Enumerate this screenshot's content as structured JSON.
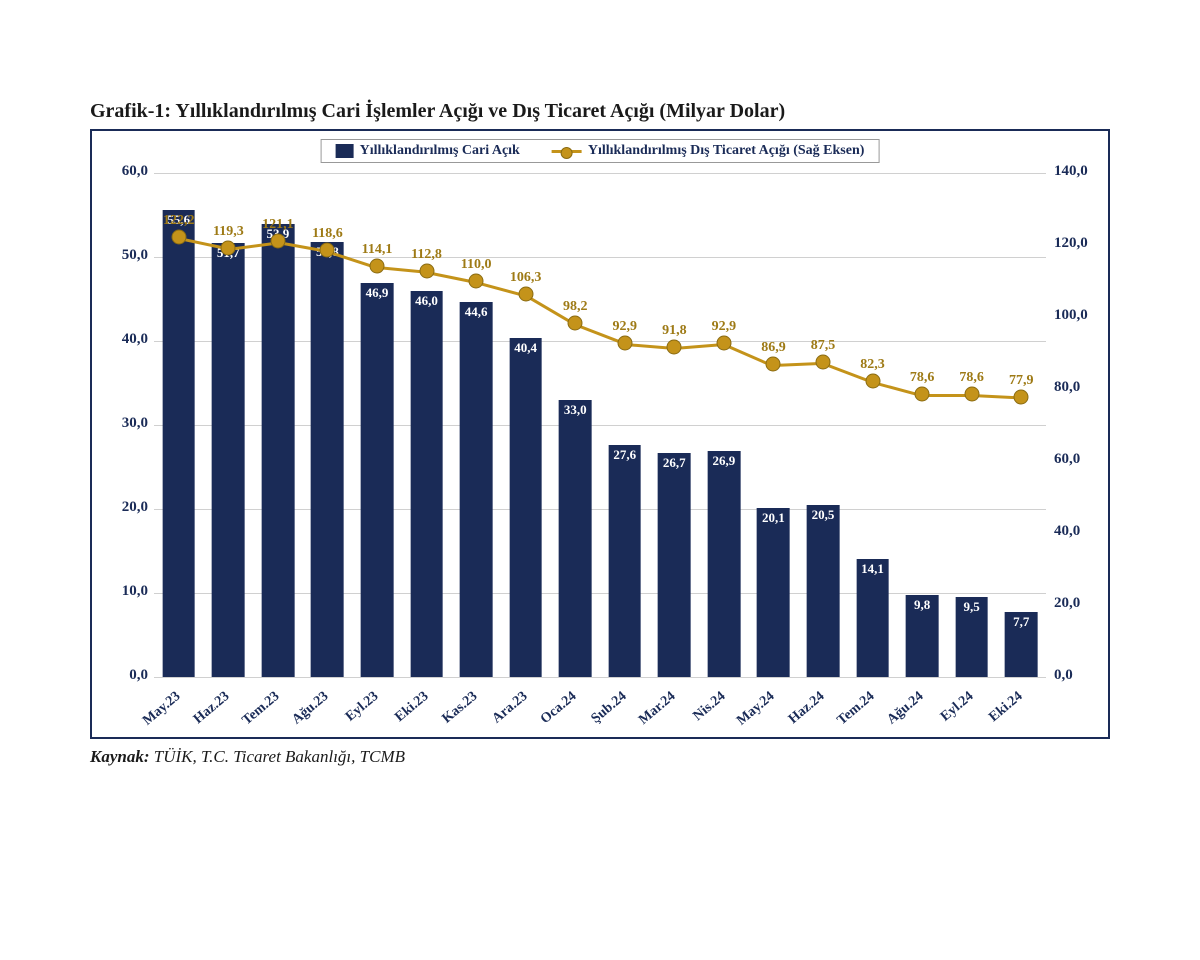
{
  "title": "Grafik-1: Yıllıklandırılmış Cari İşlemler Açığı ve Dış Ticaret Açığı (Milyar Dolar)",
  "source_label": "Kaynak:",
  "source_text": "TÜİK, T.C. Ticaret Bakanlığı, TCMB",
  "legend": {
    "bar": "Yıllıklandırılmış Cari Açık",
    "line": "Yıllıklandırılmış Dış Ticaret Açığı (Sağ Eksen)"
  },
  "chart": {
    "type": "bar+line",
    "categories": [
      "May.23",
      "Haz.23",
      "Tem.23",
      "Ağu.23",
      "Eyl.23",
      "Eki.23",
      "Kas.23",
      "Ara.23",
      "Oca.24",
      "Şub.24",
      "Mar.24",
      "Nis.24",
      "May.24",
      "Haz.24",
      "Tem.24",
      "Ağu.24",
      "Eyl.24",
      "Eki.24"
    ],
    "bar_values": [
      55.6,
      51.7,
      53.9,
      51.8,
      46.9,
      46.0,
      44.6,
      40.4,
      33.0,
      27.6,
      26.7,
      26.9,
      20.1,
      20.5,
      14.1,
      9.8,
      9.5,
      7.7
    ],
    "bar_labels": [
      "55,6",
      "51,7",
      "53,9",
      "51,8",
      "46,9",
      "46,0",
      "44,6",
      "40,4",
      "33,0",
      "27,6",
      "26,7",
      "26,9",
      "20,1",
      "20,5",
      "14,1",
      "9,8",
      "9,5",
      "7,7"
    ],
    "line_values": [
      122.2,
      119.3,
      121.1,
      118.6,
      114.1,
      112.8,
      110.0,
      106.3,
      98.2,
      92.9,
      91.8,
      92.9,
      86.9,
      87.5,
      82.3,
      78.6,
      78.6,
      77.9
    ],
    "line_labels": [
      "122,2",
      "119,3",
      "121,1",
      "118,6",
      "114,1",
      "112,8",
      "110,0",
      "106,3",
      "98,2",
      "92,9",
      "91,8",
      "92,9",
      "86,9",
      "87,5",
      "82,3",
      "78,6",
      "78,6",
      "77,9"
    ],
    "left_axis": {
      "min": 0.0,
      "max": 60.0,
      "step": 10.0,
      "tick_labels": [
        "0,0",
        "10,0",
        "20,0",
        "30,0",
        "40,0",
        "50,0",
        "60,0"
      ]
    },
    "right_axis": {
      "min": 0.0,
      "max": 140.0,
      "step": 20.0,
      "tick_labels": [
        "0,0",
        "20,0",
        "40,0",
        "60,0",
        "80,0",
        "100,0",
        "120,0",
        "140,0"
      ]
    },
    "colors": {
      "bar_fill": "#1a2b57",
      "line_stroke": "#c4931a",
      "marker_fill": "#c4931a",
      "marker_border": "#8a6b12",
      "grid": "#d0d0d0",
      "frame": "#1a2b57",
      "bg": "#ffffff",
      "line_label": "#9e7a15",
      "axis_text": "#1a2b57",
      "bar_label": "#ffffff"
    },
    "bar_width_ratio": 0.66,
    "title_fontsize": 20,
    "label_fontsize": 14,
    "xtick_rotation_deg": 40
  }
}
